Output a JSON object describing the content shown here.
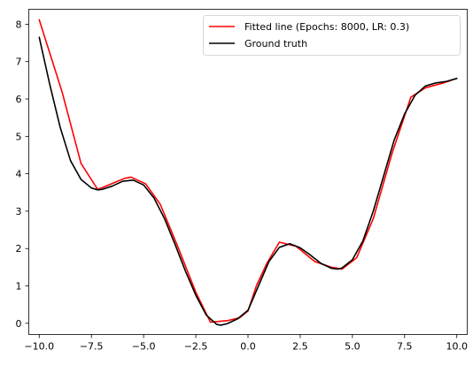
{
  "chart_data": {
    "type": "line",
    "title": "",
    "xlabel": "",
    "ylabel": "",
    "xlim": [
      -10.5,
      10.5
    ],
    "ylim": [
      -0.3,
      8.4
    ],
    "xticks": [
      -10.0,
      -7.5,
      -5.0,
      -2.5,
      0.0,
      2.5,
      5.0,
      7.5,
      10.0
    ],
    "xtick_labels": [
      "−10.0",
      "−7.5",
      "−5.0",
      "−2.5",
      "0.0",
      "2.5",
      "5.0",
      "7.5",
      "10.0"
    ],
    "yticks": [
      0,
      1,
      2,
      3,
      4,
      5,
      6,
      7,
      8
    ],
    "ytick_labels": [
      "0",
      "1",
      "2",
      "3",
      "4",
      "5",
      "6",
      "7",
      "8"
    ],
    "grid": false,
    "legend_position": "top-right",
    "series": [
      {
        "name": "Fitted line (Epochs: 8000, LR: 0.3)",
        "color": "#ff0000",
        "x": [
          -10.0,
          -8.9,
          -8.0,
          -7.2,
          -6.5,
          -5.9,
          -5.6,
          -4.9,
          -4.2,
          -3.4,
          -2.5,
          -1.8,
          -1.0,
          -0.4,
          0.0,
          0.4,
          0.9,
          1.5,
          2.3,
          3.2,
          4.0,
          4.5,
          5.2,
          6.0,
          6.9,
          7.8,
          8.5,
          9.3,
          10.0
        ],
        "y": [
          8.12,
          6.18,
          4.28,
          3.58,
          3.74,
          3.88,
          3.91,
          3.73,
          3.18,
          2.1,
          0.83,
          0.03,
          0.07,
          0.15,
          0.33,
          1.0,
          1.6,
          2.17,
          2.06,
          1.65,
          1.5,
          1.45,
          1.75,
          2.8,
          4.55,
          6.05,
          6.3,
          6.42,
          6.55
        ]
      },
      {
        "name": "Ground truth",
        "color": "#000000",
        "x": [
          -10.0,
          -9.5,
          -9.0,
          -8.5,
          -8.0,
          -7.5,
          -7.2,
          -7.0,
          -6.5,
          -6.0,
          -5.5,
          -5.0,
          -4.5,
          -4.0,
          -3.5,
          -3.0,
          -2.5,
          -2.0,
          -1.5,
          -1.3,
          -1.0,
          -0.5,
          0.0,
          0.5,
          1.0,
          1.5,
          2.0,
          2.5,
          3.0,
          3.5,
          4.0,
          4.3,
          4.5,
          5.0,
          5.5,
          6.0,
          6.5,
          7.0,
          7.5,
          8.0,
          8.5,
          9.0,
          9.5,
          10.0
        ],
        "y": [
          7.65,
          6.4,
          5.25,
          4.35,
          3.85,
          3.62,
          3.57,
          3.58,
          3.67,
          3.8,
          3.83,
          3.7,
          3.35,
          2.8,
          2.12,
          1.4,
          0.75,
          0.22,
          -0.03,
          -0.05,
          -0.01,
          0.12,
          0.35,
          1.0,
          1.65,
          2.03,
          2.13,
          2.02,
          1.82,
          1.6,
          1.47,
          1.45,
          1.48,
          1.7,
          2.2,
          3.0,
          3.95,
          4.9,
          5.6,
          6.1,
          6.35,
          6.43,
          6.47,
          6.55
        ]
      }
    ]
  }
}
